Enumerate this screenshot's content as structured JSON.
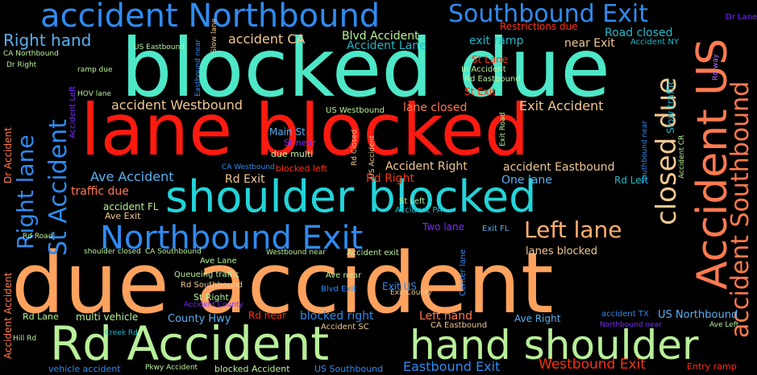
{
  "colors": {
    "background": "#000000",
    "turquoise": "#4de8c8",
    "red": "#ff1a10",
    "orange": "#ffa25e",
    "blue": "#2f8bf0",
    "cyan": "#23d4d9",
    "lightgreen": "#b8f09a",
    "tan": "#f0c890",
    "salmon": "#ff7a50",
    "purple": "#7a2bff",
    "lavender": "#b070ff",
    "lightblue": "#5ab0f0",
    "teal": "#20b8c8",
    "deepred": "#ff3010",
    "paleorange": "#ffb070"
  },
  "words": [
    {
      "text": "due accident",
      "color": "orange"
    },
    {
      "text": "blocked due",
      "color": "turquoise"
    },
    {
      "text": "lane blocked",
      "color": "red"
    },
    {
      "text": "shoulder blocked",
      "color": "cyan"
    },
    {
      "text": "Rd Accident",
      "color": "lightgreen"
    },
    {
      "text": "hand shoulder",
      "color": "lightgreen"
    },
    {
      "text": "accident Northbound",
      "color": "blue"
    },
    {
      "text": "Northbound Exit",
      "color": "blue"
    },
    {
      "text": "Southbound Exit",
      "color": "blue"
    },
    {
      "text": "Accident US",
      "color": "salmon"
    },
    {
      "text": "accident Southbound",
      "color": "salmon"
    },
    {
      "text": "closed due",
      "color": "tan"
    },
    {
      "text": "Left lane",
      "color": "paleorange"
    },
    {
      "text": "Right lane",
      "color": "blue"
    },
    {
      "text": "St Accident",
      "color": "blue"
    },
    {
      "text": "Right hand",
      "color": "lightblue"
    },
    {
      "text": "accident CA",
      "color": "tan"
    },
    {
      "text": "Blvd Accident",
      "color": "lightgreen"
    },
    {
      "text": "Accident Lane",
      "color": "teal"
    },
    {
      "text": "exit ramp",
      "color": "teal"
    },
    {
      "text": "Restrictions due",
      "color": "deepred"
    },
    {
      "text": "Road closed",
      "color": "teal"
    },
    {
      "text": "near Exit",
      "color": "tan"
    },
    {
      "text": "Accident NY",
      "color": "teal"
    },
    {
      "text": "Dr Lane",
      "color": "purple"
    },
    {
      "text": "accident Westbound",
      "color": "tan"
    },
    {
      "text": "lane closed",
      "color": "salmon"
    },
    {
      "text": "Exit Accident",
      "color": "tan"
    },
    {
      "text": "Ave Accident",
      "color": "lightblue"
    },
    {
      "text": "Rd Exit",
      "color": "tan"
    },
    {
      "text": "Accident Right",
      "color": "tan"
    },
    {
      "text": "accident Eastbound",
      "color": "tan"
    },
    {
      "text": "One lane",
      "color": "lightblue"
    },
    {
      "text": "Rd Left",
      "color": "teal"
    },
    {
      "text": "traffic due",
      "color": "salmon"
    },
    {
      "text": "Rd Right",
      "color": "deepred"
    },
    {
      "text": "accident FL",
      "color": "lightgreen"
    },
    {
      "text": "Ave Exit",
      "color": "tan"
    },
    {
      "text": "Main St",
      "color": "lightblue"
    },
    {
      "text": "St near",
      "color": "purple"
    },
    {
      "text": "due multi",
      "color": "lightgreen"
    },
    {
      "text": "blocked left",
      "color": "deepred"
    },
    {
      "text": "CA Westbound",
      "color": "blue"
    },
    {
      "text": "US Westbound",
      "color": "lightgreen"
    },
    {
      "text": "US Eastbound",
      "color": "lightgreen"
    },
    {
      "text": "CA Northbound",
      "color": "lightgreen"
    },
    {
      "text": "Dr Right",
      "color": "lightgreen"
    },
    {
      "text": "ramp due",
      "color": "lightgreen"
    },
    {
      "text": "HOV lane",
      "color": "lightgreen"
    },
    {
      "text": "Accident Left",
      "color": "purple"
    },
    {
      "text": "Dr Accident",
      "color": "salmon"
    },
    {
      "text": "St Lane",
      "color": "deepred"
    },
    {
      "text": "In Accident",
      "color": "lightgreen"
    },
    {
      "text": "Rd Eastbound",
      "color": "lightgreen"
    },
    {
      "text": "St Exit",
      "color": "deepred"
    },
    {
      "text": "Eastbound near",
      "color": "blue"
    },
    {
      "text": "Slow lane",
      "color": "tan"
    },
    {
      "text": "Slow traffic",
      "color": "teal"
    },
    {
      "text": "Rd way",
      "color": "lavender"
    },
    {
      "text": "Exit Road",
      "color": "lightgreen"
    },
    {
      "text": "Rd Closed",
      "color": "tan"
    },
    {
      "text": "US Accident",
      "color": "tan"
    },
    {
      "text": "Southbound near",
      "color": "blue"
    },
    {
      "text": "Accident CR",
      "color": "lightgreen"
    },
    {
      "text": "Accident exit",
      "color": "lightgreen"
    },
    {
      "text": "lanes blocked",
      "color": "tan"
    },
    {
      "text": "St Left",
      "color": "lightgreen"
    },
    {
      "text": "Accident PA",
      "color": "teal"
    },
    {
      "text": "Two lane",
      "color": "purple"
    },
    {
      "text": "Exit FL",
      "color": "lightblue"
    },
    {
      "text": "Rd Road",
      "color": "lightgreen"
    },
    {
      "text": "shoulder closed",
      "color": "lightgreen"
    },
    {
      "text": "CA Southbound",
      "color": "lightgreen"
    },
    {
      "text": "Westbound near",
      "color": "lightgreen"
    },
    {
      "text": "Ave Lane",
      "color": "lightgreen"
    },
    {
      "text": "Queueing traffic",
      "color": "lightgreen"
    },
    {
      "text": "Ave near",
      "color": "lightgreen"
    },
    {
      "text": "Rd Southbound",
      "color": "tan"
    },
    {
      "text": "Blvd Exit",
      "color": "blue"
    },
    {
      "text": "Exit US",
      "color": "blue"
    },
    {
      "text": "Exit County",
      "color": "tan"
    },
    {
      "text": "Center lane",
      "color": "blue"
    },
    {
      "text": "St Right",
      "color": "lightgreen"
    },
    {
      "text": "Accident County",
      "color": "purple"
    },
    {
      "text": "Accident Accident",
      "color": "salmon"
    },
    {
      "text": "Rd Lane",
      "color": "lightgreen"
    },
    {
      "text": "multi vehicle",
      "color": "lightgreen"
    },
    {
      "text": "County Hwy",
      "color": "lightblue"
    },
    {
      "text": "Rd near",
      "color": "deepred"
    },
    {
      "text": "blocked right",
      "color": "blue"
    },
    {
      "text": "Left hand",
      "color": "salmon"
    },
    {
      "text": "Ave Right",
      "color": "lightblue"
    },
    {
      "text": "accident TX",
      "color": "blue"
    },
    {
      "text": "US Northbound",
      "color": "lightblue"
    },
    {
      "text": "Northbound near",
      "color": "purple"
    },
    {
      "text": "Ave Left",
      "color": "lightgreen"
    },
    {
      "text": "Accident SC",
      "color": "tan"
    },
    {
      "text": "CA Eastbound",
      "color": "tan"
    },
    {
      "text": "Creek Rd",
      "color": "teal"
    },
    {
      "text": "Hill Rd",
      "color": "lightgreen"
    },
    {
      "text": "vehicle accident",
      "color": "blue"
    },
    {
      "text": "Pkwy Accident",
      "color": "lightgreen"
    },
    {
      "text": "blocked Accident",
      "color": "lightgreen"
    },
    {
      "text": "US Southbound",
      "color": "blue"
    },
    {
      "text": "Eastbound Exit",
      "color": "blue"
    },
    {
      "text": "Westbound Exit",
      "color": "deepred"
    },
    {
      "text": "Entry ramp",
      "color": "deepred"
    }
  ]
}
